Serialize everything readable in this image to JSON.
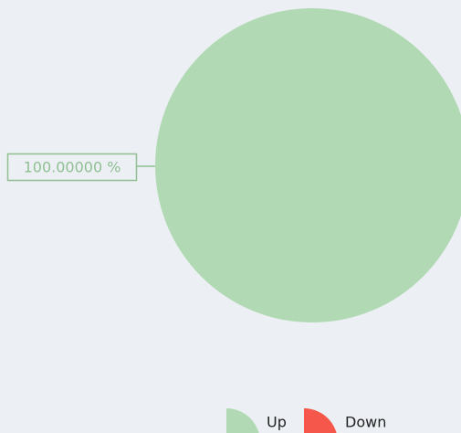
{
  "chart_data": {
    "type": "pie",
    "categories": [
      "Up",
      "Down"
    ],
    "values": [
      100,
      0
    ],
    "value_labels": [
      "100.00000 %",
      null
    ],
    "colors": [
      "#b1dab4",
      "#f5584a"
    ]
  }
}
